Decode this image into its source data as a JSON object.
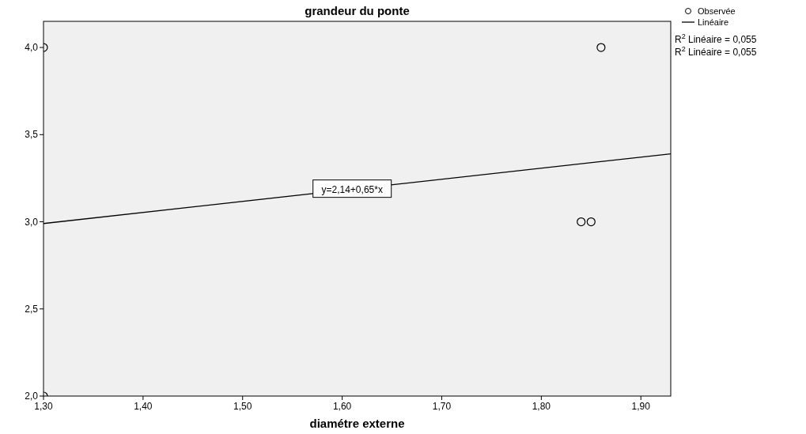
{
  "chart_data": {
    "type": "scatter",
    "title": "grandeur du ponte",
    "xlabel": "diamétre externe",
    "xlim": [
      1.3,
      1.93
    ],
    "ylim": [
      2,
      4.15
    ],
    "xticks": [
      {
        "value": 1.3,
        "label": "1,30"
      },
      {
        "value": 1.4,
        "label": "1,40"
      },
      {
        "value": 1.5,
        "label": "1,50"
      },
      {
        "value": 1.6,
        "label": "1,60"
      },
      {
        "value": 1.7,
        "label": "1,70"
      },
      {
        "value": 1.8,
        "label": "1,80"
      },
      {
        "value": 1.9,
        "label": "1,90"
      }
    ],
    "yticks": [
      {
        "value": 2,
        "label": "2,0"
      },
      {
        "value": 2.5,
        "label": "2,5"
      },
      {
        "value": 3,
        "label": "3,0"
      },
      {
        "value": 3.5,
        "label": "3,5"
      },
      {
        "value": 4,
        "label": "4,0"
      }
    ],
    "series": [
      {
        "name": "Observée",
        "color": "#000000",
        "marker": "circle",
        "x": [
          1.3,
          1.3,
          1.84,
          1.85,
          1.86
        ],
        "values": [
          4,
          2,
          3,
          3,
          4
        ]
      },
      {
        "name": "Linéaire",
        "type": "line",
        "color": "#000000",
        "line_style": "solid",
        "x": [
          1.3,
          1.93
        ],
        "values": [
          2.99,
          3.39
        ]
      }
    ],
    "annotations": [
      {
        "text": "y=2,14+0,65*x",
        "x": 1.61,
        "y": 3.19
      },
      "R$^{2}$ Linéaire = 0,055",
      "R$^{2}$ Linéaire = 0,055"
    ],
    "legend": "top right",
    "grid": false
  }
}
